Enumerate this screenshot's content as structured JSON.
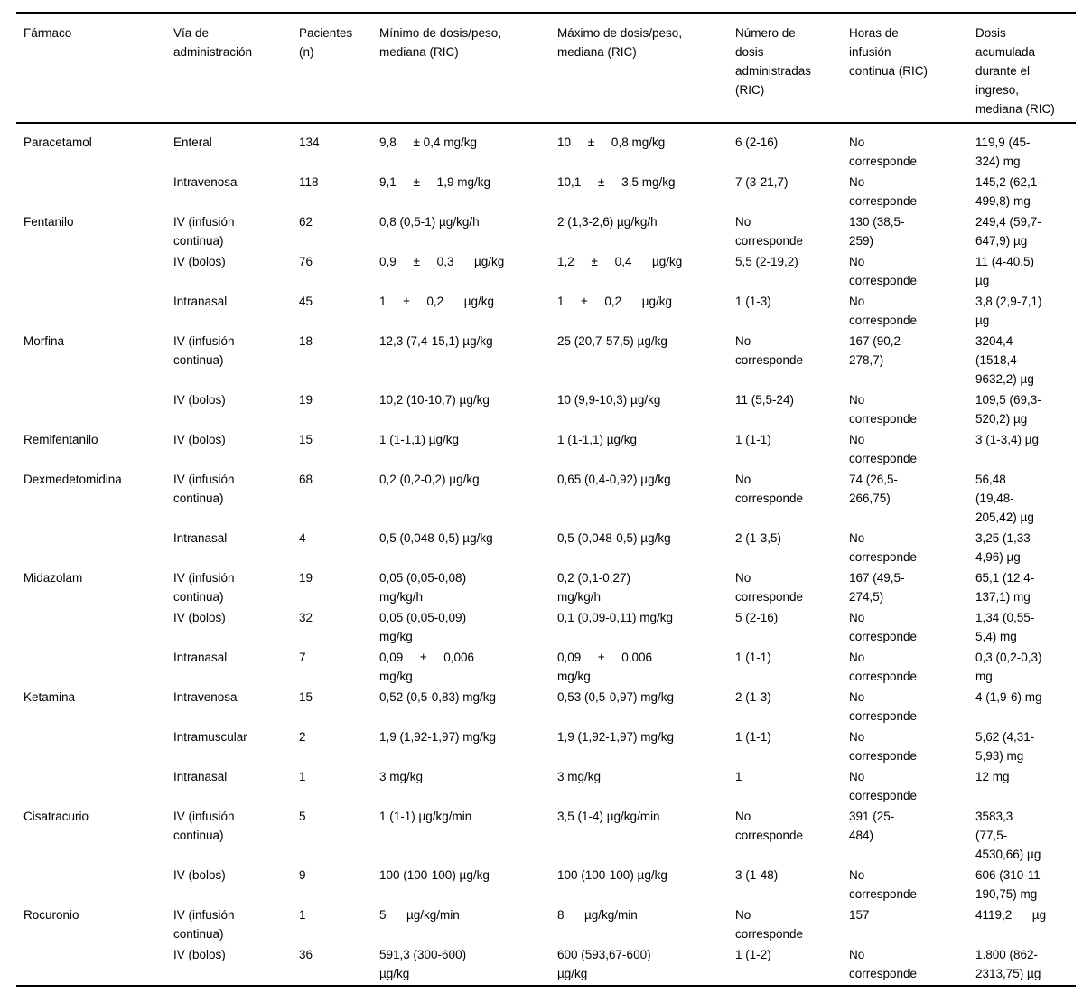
{
  "colors": {
    "background": "#ffffff",
    "text": "#000000",
    "rule": "#000000"
  },
  "table": {
    "column_keys": [
      "farmaco",
      "via",
      "pacientes",
      "minimo",
      "maximo",
      "numero_dosis",
      "horas_infusion",
      "dosis_acumulada"
    ],
    "headers": {
      "farmaco": "Fármaco",
      "via": "Vía de\nadministración",
      "pacientes": "Pacientes\n(n)",
      "minimo": "Mínimo de dosis/peso,\nmediana (RIC)",
      "maximo": "Máximo de dosis/peso,\nmediana (RIC)",
      "numero_dosis": "Número de\ndosis\nadministradas\n(RIC)",
      "horas_infusion": "Horas de\ninfusión\ncontinua (RIC)",
      "dosis_acumulada": "Dosis\nacumulada\ndurante el\ningreso,\nmediana (RIC)"
    },
    "rows": [
      {
        "farmaco": "Paracetamol",
        "via": "Enteral",
        "pacientes": "134",
        "minimo": "9,8     ± 0,4 mg/kg",
        "maximo": "10     ±     0,8 mg/kg",
        "numero_dosis": "6 (2-16)",
        "horas_infusion": "No\ncorresponde",
        "dosis_acumulada": "119,9 (45-\n324) mg"
      },
      {
        "farmaco": "",
        "via": "Intravenosa",
        "pacientes": "118",
        "minimo": "9,1     ±     1,9 mg/kg",
        "maximo": "10,1     ±     3,5 mg/kg",
        "numero_dosis": "7 (3-21,7)",
        "horas_infusion": "No\ncorresponde",
        "dosis_acumulada": "145,2 (62,1-\n499,8) mg"
      },
      {
        "farmaco": "Fentanilo",
        "via": "IV (infusión\ncontinua)",
        "pacientes": "62",
        "minimo": "0,8 (0,5-1) µg/kg/h",
        "maximo": "2 (1,3-2,6) µg/kg/h",
        "numero_dosis": "No\ncorresponde",
        "horas_infusion": "130 (38,5-\n259)",
        "dosis_acumulada": "249,4 (59,7-\n647,9) µg"
      },
      {
        "farmaco": "",
        "via": "IV (bolos)",
        "pacientes": "76",
        "minimo": "0,9     ±     0,3      µg/kg",
        "maximo": "1,2     ±     0,4      µg/kg",
        "numero_dosis": "5,5 (2-19,2)",
        "horas_infusion": "No\ncorresponde",
        "dosis_acumulada": "11 (4-40,5)\nµg"
      },
      {
        "farmaco": "",
        "via": "Intranasal",
        "pacientes": "45",
        "minimo": "1     ±     0,2      µg/kg",
        "maximo": "1     ±     0,2      µg/kg",
        "numero_dosis": "1 (1-3)",
        "horas_infusion": "No\ncorresponde",
        "dosis_acumulada": "3,8 (2,9-7,1)\nµg"
      },
      {
        "farmaco": "Morfina",
        "via": "IV (infusión\ncontinua)",
        "pacientes": "18",
        "minimo": "12,3 (7,4-15,1) µg/kg",
        "maximo": "25 (20,7-57,5) µg/kg",
        "numero_dosis": "No\ncorresponde",
        "horas_infusion": "167 (90,2-\n278,7)",
        "dosis_acumulada": "3204,4\n(1518,4-\n9632,2) µg"
      },
      {
        "farmaco": "",
        "via": "IV (bolos)",
        "pacientes": "19",
        "minimo": "10,2 (10-10,7) µg/kg",
        "maximo": "10 (9,9-10,3) µg/kg",
        "numero_dosis": "11 (5,5-24)",
        "horas_infusion": "No\ncorresponde",
        "dosis_acumulada": "109,5 (69,3-\n520,2) µg"
      },
      {
        "farmaco": "Remifentanilo",
        "via": "IV (bolos)",
        "pacientes": "15",
        "minimo": "1 (1-1,1) µg/kg",
        "maximo": "1 (1-1,1) µg/kg",
        "numero_dosis": "1 (1-1)",
        "horas_infusion": "No\ncorresponde",
        "dosis_acumulada": "3 (1-3,4) µg"
      },
      {
        "farmaco": "Dexmedetomidina",
        "via": "IV (infusión\ncontinua)",
        "pacientes": "68",
        "minimo": "0,2 (0,2-0,2) µg/kg",
        "maximo": "0,65 (0,4-0,92) µg/kg",
        "numero_dosis": "No\ncorresponde",
        "horas_infusion": "74 (26,5-\n266,75)",
        "dosis_acumulada": "56,48\n(19,48-\n205,42) µg"
      },
      {
        "farmaco": "",
        "via": "Intranasal",
        "pacientes": "4",
        "minimo": "0,5 (0,048-0,5) µg/kg",
        "maximo": "0,5 (0,048-0,5) µg/kg",
        "numero_dosis": "2 (1-3,5)",
        "horas_infusion": "No\ncorresponde",
        "dosis_acumulada": "3,25 (1,33-\n4,96) µg"
      },
      {
        "farmaco": "Midazolam",
        "via": "IV (infusión\ncontinua)",
        "pacientes": "19",
        "minimo": "0,05 (0,05-0,08)\nmg/kg/h",
        "maximo": "0,2 (0,1-0,27)\nmg/kg/h",
        "numero_dosis": "No\ncorresponde",
        "horas_infusion": "167 (49,5-\n274,5)",
        "dosis_acumulada": "65,1 (12,4-\n137,1) mg"
      },
      {
        "farmaco": "",
        "via": "IV (bolos)",
        "pacientes": "32",
        "minimo": "0,05 (0,05-0,09)\nmg/kg",
        "maximo": "0,1 (0,09-0,11) mg/kg",
        "numero_dosis": "5 (2-16)",
        "horas_infusion": "No\ncorresponde",
        "dosis_acumulada": "1,34 (0,55-\n5,4) mg"
      },
      {
        "farmaco": "",
        "via": "Intranasal",
        "pacientes": "7",
        "minimo": "0,09     ±     0,006\nmg/kg",
        "maximo": "0,09     ±     0,006\nmg/kg",
        "numero_dosis": "1 (1-1)",
        "horas_infusion": "No\ncorresponde",
        "dosis_acumulada": "0,3 (0,2-0,3)\nmg"
      },
      {
        "farmaco": "Ketamina",
        "via": "Intravenosa",
        "pacientes": "15",
        "minimo": "0,52 (0,5-0,83) mg/kg",
        "maximo": "0,53 (0,5-0,97) mg/kg",
        "numero_dosis": "2 (1-3)",
        "horas_infusion": "No\ncorresponde",
        "dosis_acumulada": "4 (1,9-6) mg"
      },
      {
        "farmaco": "",
        "via": "Intramuscular",
        "pacientes": "2",
        "minimo": "1,9 (1,92-1,97) mg/kg",
        "maximo": "1,9 (1,92-1,97) mg/kg",
        "numero_dosis": "1 (1-1)",
        "horas_infusion": "No\ncorresponde",
        "dosis_acumulada": "5,62 (4,31-\n5,93) mg"
      },
      {
        "farmaco": "",
        "via": "Intranasal",
        "pacientes": "1",
        "minimo": "3 mg/kg",
        "maximo": "3 mg/kg",
        "numero_dosis": "1",
        "horas_infusion": "No\ncorresponde",
        "dosis_acumulada": "12 mg"
      },
      {
        "farmaco": "Cisatracurio",
        "via": "IV (infusión\ncontinua)",
        "pacientes": "5",
        "minimo": "1 (1-1) µg/kg/min",
        "maximo": "3,5 (1-4) µg/kg/min",
        "numero_dosis": "No\ncorresponde",
        "horas_infusion": "391 (25-\n484)",
        "dosis_acumulada": "3583,3\n(77,5-\n4530,66) µg"
      },
      {
        "farmaco": "",
        "via": "IV (bolos)",
        "pacientes": "9",
        "minimo": "100 (100-100) µg/kg",
        "maximo": "100 (100-100) µg/kg",
        "numero_dosis": "3 (1-48)",
        "horas_infusion": "No\ncorresponde",
        "dosis_acumulada": "606 (310-11\n190,75) mg"
      },
      {
        "farmaco": "Rocuronio",
        "via": "IV (infusión\ncontinua)",
        "pacientes": "1",
        "minimo": "5      µg/kg/min",
        "maximo": "8      µg/kg/min",
        "numero_dosis": "No\ncorresponde",
        "horas_infusion": "157",
        "dosis_acumulada": "4119,2      µg"
      },
      {
        "farmaco": "",
        "via": "IV (bolos)",
        "pacientes": "36",
        "minimo": "591,3 (300-600)\nµg/kg",
        "maximo": "600 (593,67-600)\nµg/kg",
        "numero_dosis": "1 (1-2)",
        "horas_infusion": "No\ncorresponde",
        "dosis_acumulada": "1.800 (862-\n2313,75) µg"
      }
    ]
  }
}
